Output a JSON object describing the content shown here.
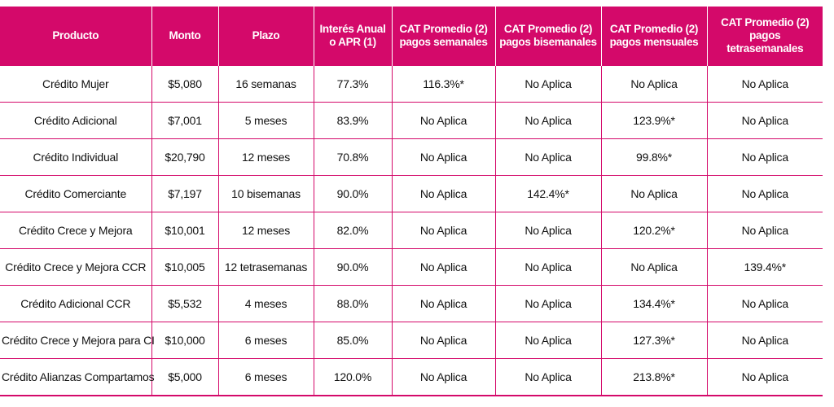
{
  "table": {
    "headers": [
      "Producto",
      "Monto",
      "Plazo",
      "Interés Anual o APR (1)",
      "CAT Promedio (2) pagos semanales",
      "CAT Promedio (2) pagos bisemanales",
      "CAT Promedio (2) pagos mensuales",
      "CAT Promedio (2) pagos tetrasemanales"
    ],
    "rows": [
      [
        "Crédito Mujer",
        "$5,080",
        "16 semanas",
        "77.3%",
        "116.3%*",
        "No Aplica",
        "No Aplica",
        "No Aplica"
      ],
      [
        "Crédito Adicional",
        "$7,001",
        "5 meses",
        "83.9%",
        "No Aplica",
        "No Aplica",
        "123.9%*",
        "No Aplica"
      ],
      [
        "Crédito Individual",
        "$20,790",
        "12 meses",
        "70.8%",
        "No Aplica",
        "No Aplica",
        "99.8%*",
        "No Aplica"
      ],
      [
        "Crédito Comerciante",
        "$7,197",
        "10 bisemanas",
        "90.0%",
        "No Aplica",
        "142.4%*",
        "No Aplica",
        "No Aplica"
      ],
      [
        "Crédito Crece y Mejora",
        "$10,001",
        "12 meses",
        "82.0%",
        "No Aplica",
        "No Aplica",
        "120.2%*",
        "No Aplica"
      ],
      [
        "Crédito Crece y Mejora CCR",
        "$10,005",
        "12 tetrasemanas",
        "90.0%",
        "No Aplica",
        "No Aplica",
        "No Aplica",
        "139.4%*"
      ],
      [
        "Crédito Adicional CCR",
        "$5,532",
        "4 meses",
        "88.0%",
        "No Aplica",
        "No Aplica",
        "134.4%*",
        "No Aplica"
      ],
      [
        "Crédito Crece y Mejora para CI",
        "$10,000",
        "6 meses",
        "85.0%",
        "No Aplica",
        "No Aplica",
        "127.3%*",
        "No Aplica"
      ],
      [
        "Crédito Alianzas Compartamos",
        "$5,000",
        "6 meses",
        "120.0%",
        "No Aplica",
        "No Aplica",
        "213.8%*",
        "No Aplica"
      ]
    ]
  },
  "colors": {
    "header_bg": "#d4096a",
    "header_text": "#ffffff",
    "rule": "#d4096a"
  }
}
